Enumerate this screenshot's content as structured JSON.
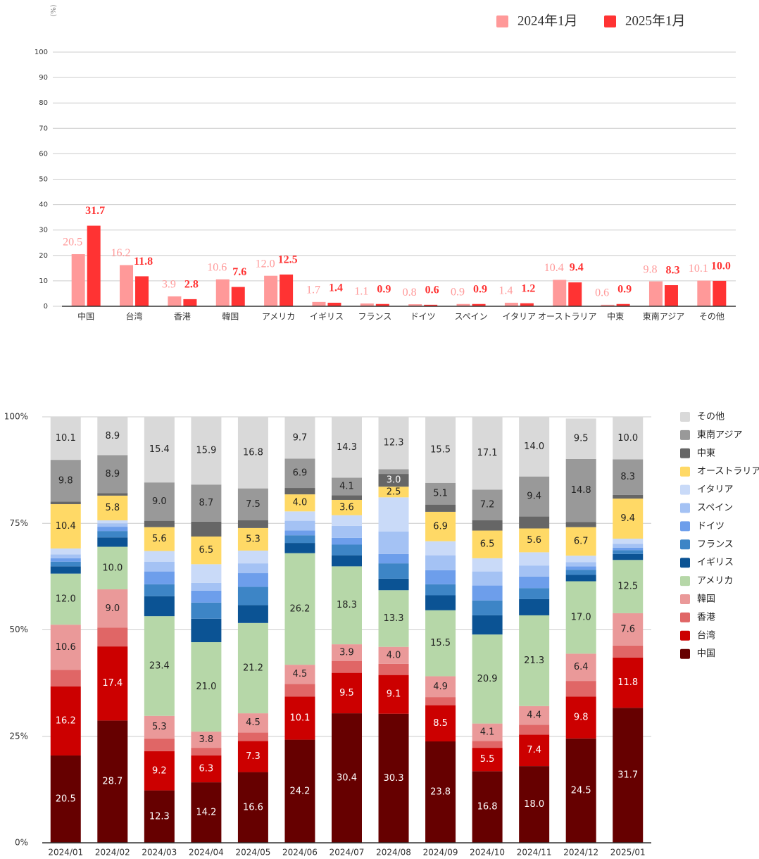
{
  "chart_data": [
    {
      "type": "bar",
      "y_label": "(%)",
      "categories": [
        "中国",
        "台湾",
        "香港",
        "韓国",
        "アメリカ",
        "イギリス",
        "フランス",
        "ドイツ",
        "スペイン",
        "イタリア",
        "オーストラリア",
        "中東",
        "東南アジア",
        "その他"
      ],
      "series": [
        {
          "name": "2024年1月",
          "color": "#ff9999",
          "values": [
            20.5,
            16.2,
            3.9,
            10.6,
            12.0,
            1.7,
            1.1,
            0.8,
            0.9,
            1.4,
            10.4,
            0.6,
            9.8,
            10.1
          ],
          "value_labels": [
            "20.5",
            "16.2",
            "3.9",
            "10.6",
            "12.0",
            "1.7",
            "1.1",
            "0.8",
            "0.9",
            "1.4",
            "10.4",
            "0.6",
            "9.8",
            "10.1"
          ]
        },
        {
          "name": "2025年1月",
          "color": "#ff3333",
          "values": [
            31.7,
            11.8,
            2.8,
            7.6,
            12.5,
            1.4,
            0.9,
            0.6,
            0.9,
            1.2,
            9.4,
            0.9,
            8.3,
            10.0
          ],
          "value_labels": [
            "31.7",
            "11.8",
            "2.8",
            "7.6",
            "12.5",
            "1.4",
            "0.9",
            "0.6",
            "0.9",
            "1.2",
            "9.4",
            "0.9",
            "8.3",
            "10.0"
          ]
        }
      ],
      "ylim": [
        0,
        100
      ],
      "yticks": [
        0,
        10,
        20,
        30,
        40,
        50,
        60,
        70,
        80,
        90,
        100
      ],
      "grid": true
    },
    {
      "type": "bar",
      "stacked": true,
      "categories": [
        "2024/01",
        "2024/02",
        "2024/03",
        "2024/04",
        "2024/05",
        "2024/06",
        "2024/07",
        "2024/08",
        "2024/09",
        "2024/10",
        "2024/11",
        "2024/12",
        "2025/01"
      ],
      "series": [
        {
          "name": "中国",
          "color": "#660000",
          "values": [
            20.5,
            28.7,
            12.3,
            14.2,
            16.6,
            24.2,
            30.4,
            30.3,
            23.8,
            16.8,
            18.0,
            24.5,
            31.7
          ],
          "value_labels": [
            "20.5",
            "28.7",
            "12.3",
            "14.2",
            "16.6",
            "24.2",
            "30.4",
            "30.3",
            "23.8",
            "16.8",
            "18.0",
            "24.5",
            "31.7"
          ]
        },
        {
          "name": "台湾",
          "color": "#cc0000",
          "values": [
            16.2,
            17.4,
            9.2,
            6.3,
            7.3,
            10.1,
            9.5,
            9.1,
            8.5,
            5.5,
            7.4,
            9.8,
            11.8
          ],
          "value_labels": [
            "16.2",
            "17.4",
            "9.2",
            "6.3",
            "7.3",
            "10.1",
            "9.5",
            "9.1",
            "8.5",
            "5.5",
            "7.4",
            "9.8",
            "11.8"
          ]
        },
        {
          "name": "香港",
          "color": "#e06666",
          "values": [
            3.9,
            4.4,
            3.0,
            1.8,
            2.0,
            3.0,
            2.8,
            2.6,
            1.9,
            1.6,
            2.3,
            3.7,
            2.8
          ]
        },
        {
          "name": "韓国",
          "color": "#ea9999",
          "values": [
            10.6,
            9.0,
            5.3,
            3.8,
            4.5,
            4.5,
            3.9,
            4.0,
            4.9,
            4.1,
            4.4,
            6.4,
            7.6
          ],
          "value_labels": [
            "10.6",
            "9.0",
            "5.3",
            "3.8",
            "4.5",
            "4.5",
            "3.9",
            "4.0",
            "4.9",
            "4.1",
            "4.4",
            "6.4",
            "7.6"
          ]
        },
        {
          "name": "アメリカ",
          "color": "#b6d7a8",
          "values": [
            12.0,
            10.0,
            23.4,
            21.0,
            21.2,
            26.2,
            18.3,
            13.3,
            15.5,
            20.9,
            21.3,
            17.0,
            12.5
          ],
          "value_labels": [
            "12.0",
            "10.0",
            "23.4",
            "21.0",
            "21.2",
            "26.2",
            "18.3",
            "13.3",
            "15.5",
            "20.9",
            "21.3",
            "17.0",
            "12.5"
          ]
        },
        {
          "name": "イギリス",
          "color": "#0b5394",
          "values": [
            1.7,
            2.2,
            4.7,
            5.5,
            4.2,
            2.4,
            2.6,
            2.7,
            3.5,
            4.5,
            3.8,
            1.5,
            1.4
          ]
        },
        {
          "name": "フランス",
          "color": "#3d85c6",
          "values": [
            1.1,
            1.5,
            2.8,
            3.8,
            4.3,
            1.8,
            2.5,
            3.6,
            2.6,
            3.5,
            2.6,
            1.2,
            0.9
          ]
        },
        {
          "name": "ドイツ",
          "color": "#6d9eeb",
          "values": [
            0.8,
            1.0,
            3.0,
            2.8,
            3.2,
            1.1,
            1.6,
            2.2,
            3.3,
            3.5,
            2.7,
            0.8,
            0.6
          ]
        },
        {
          "name": "スペイン",
          "color": "#a4c2f4",
          "values": [
            0.9,
            0.8,
            2.3,
            1.8,
            2.3,
            2.3,
            2.8,
            5.3,
            3.5,
            3.3,
            2.6,
            1.0,
            0.9
          ]
        },
        {
          "name": "イタリア",
          "color": "#c9daf8",
          "values": [
            1.4,
            0.7,
            2.5,
            4.4,
            3.0,
            2.2,
            2.5,
            8.0,
            3.3,
            3.1,
            3.1,
            1.5,
            1.2
          ]
        },
        {
          "name": "オーストラリア",
          "color": "#ffd966",
          "values": [
            10.4,
            5.8,
            5.6,
            6.5,
            5.3,
            4.0,
            3.6,
            2.5,
            6.9,
            6.5,
            5.6,
            6.7,
            9.4
          ],
          "value_labels": [
            "10.4",
            "5.8",
            "5.6",
            "6.5",
            "5.3",
            "4.0",
            "3.6",
            "2.5",
            "6.9",
            "6.5",
            "5.6",
            "6.7",
            "9.4"
          ]
        },
        {
          "name": "中東",
          "color": "#666666",
          "values": [
            0.6,
            0.6,
            1.5,
            3.5,
            1.8,
            1.5,
            1.1,
            3.0,
            1.7,
            2.4,
            2.8,
            1.2,
            0.9
          ],
          "value_labels": [
            null,
            null,
            null,
            null,
            null,
            null,
            null,
            "3.0",
            null,
            null,
            null,
            null,
            null
          ]
        },
        {
          "name": "東南アジア",
          "color": "#999999",
          "values": [
            9.8,
            8.9,
            9.0,
            8.7,
            7.5,
            6.9,
            4.1,
            1.1,
            5.1,
            7.2,
            9.4,
            14.8,
            8.3
          ],
          "value_labels": [
            "9.8",
            "8.9",
            "9.0",
            "8.7",
            "7.5",
            "6.9",
            "4.1",
            null,
            "5.1",
            "7.2",
            "9.4",
            "14.8",
            "8.3"
          ]
        },
        {
          "name": "その他",
          "color": "#d9d9d9",
          "values": [
            10.1,
            8.9,
            15.4,
            15.9,
            16.8,
            9.7,
            14.3,
            12.3,
            15.5,
            17.1,
            14.0,
            9.5,
            10.0
          ],
          "value_labels": [
            "10.1",
            "8.9",
            "15.4",
            "15.9",
            "16.8",
            "9.7",
            "14.3",
            "12.3",
            "15.5",
            "17.1",
            "14.0",
            "9.5",
            "10.0"
          ]
        }
      ],
      "ylim": [
        0,
        100
      ],
      "yticks": [
        {
          "value": 0,
          "label": "0%"
        },
        {
          "value": 25,
          "label": "25%"
        },
        {
          "value": 50,
          "label": "50%"
        },
        {
          "value": 75,
          "label": "75%"
        },
        {
          "value": 100,
          "label": "100%"
        }
      ],
      "grid": true
    }
  ]
}
